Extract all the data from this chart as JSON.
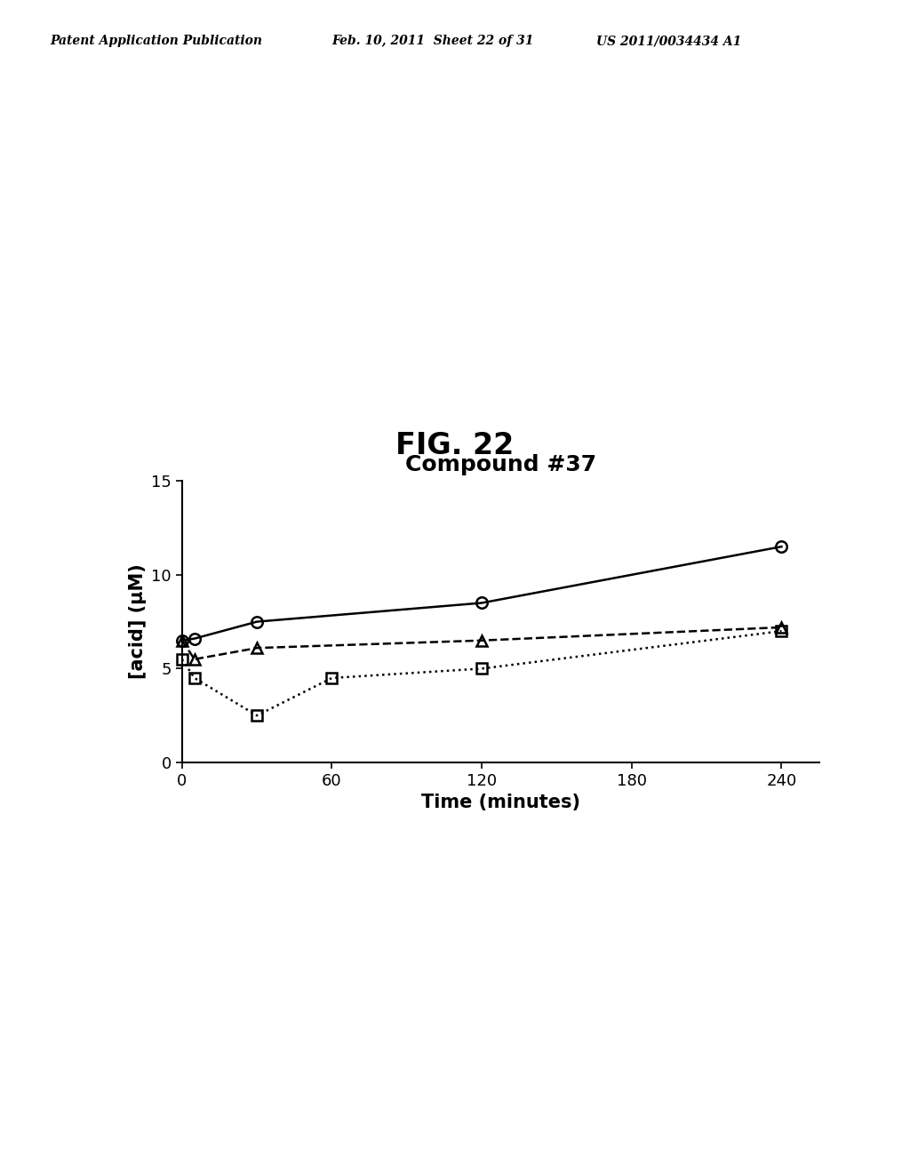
{
  "title": "Compound #37",
  "xlabel": "Time (minutes)",
  "ylabel": "[acid] (μM)",
  "fig_label": "FIG. 22",
  "header_left": "Patent Application Publication",
  "header_mid": "Feb. 10, 2011  Sheet 22 of 31",
  "header_right": "US 2011/0034434 A1",
  "xlim": [
    0,
    255
  ],
  "ylim": [
    0,
    15
  ],
  "xticks": [
    0,
    60,
    120,
    180,
    240
  ],
  "yticks": [
    0,
    5,
    10,
    15
  ],
  "series": [
    {
      "name": "circle_solid",
      "x": [
        0,
        5,
        30,
        120,
        240
      ],
      "y": [
        6.5,
        6.6,
        7.5,
        8.5,
        11.5
      ],
      "linestyle": "solid",
      "linewidth": 1.8,
      "marker": "o",
      "markersize": 9,
      "color": "#000000",
      "fillstyle": "none"
    },
    {
      "name": "triangle_dashed",
      "x": [
        0,
        5,
        30,
        120,
        240
      ],
      "y": [
        6.5,
        5.5,
        6.1,
        6.5,
        7.2
      ],
      "linestyle": "dashed",
      "linewidth": 1.8,
      "marker": "^",
      "markersize": 9,
      "color": "#000000",
      "fillstyle": "none"
    },
    {
      "name": "square_dotted",
      "x": [
        0,
        5,
        30,
        60,
        120,
        240
      ],
      "y": [
        5.5,
        4.5,
        2.5,
        4.5,
        5.0,
        7.0
      ],
      "linestyle": "dotted",
      "linewidth": 1.8,
      "marker": "s",
      "markersize": 9,
      "color": "#000000",
      "fillstyle": "none"
    }
  ],
  "background_color": "#ffffff",
  "title_fontsize": 18,
  "axis_label_fontsize": 15,
  "tick_fontsize": 13,
  "fig_label_fontsize": 24,
  "header_fontsize": 10
}
